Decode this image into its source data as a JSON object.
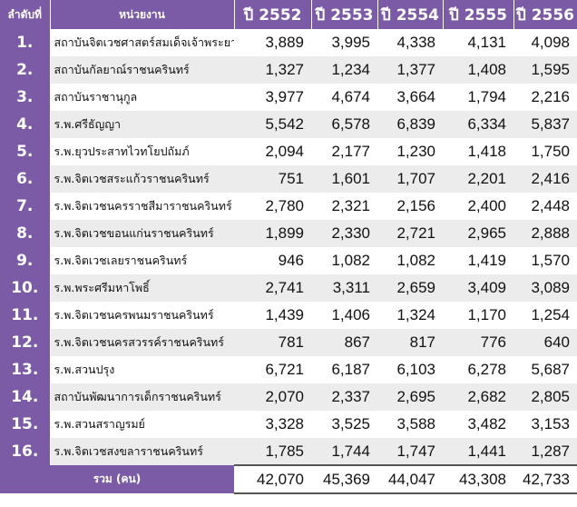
{
  "header": {
    "index_label": "ลำดับที่",
    "name_label": "หน่วยงาน",
    "years": [
      "ปี 2552",
      "ปี 2553",
      "ปี 2554",
      "ปี 2555",
      "ปี 2556"
    ]
  },
  "rows": [
    {
      "idx": "1.",
      "name": "สถาบันจิตเวชศาสตร์สมเด็จเจ้าพระยา",
      "values": [
        "3,889",
        "3,995",
        "4,338",
        "4,131",
        "4,098"
      ]
    },
    {
      "idx": "2.",
      "name": "สถาบันกัลยาณ์ราชนครินทร์",
      "values": [
        "1,327",
        "1,234",
        "1,377",
        "1,408",
        "1,595"
      ]
    },
    {
      "idx": "3.",
      "name": "สถาบันราชานุกูล",
      "values": [
        "3,977",
        "4,674",
        "3,664",
        "1,794",
        "2,216"
      ]
    },
    {
      "idx": "4.",
      "name": "ร.พ.ศรีธัญญา",
      "values": [
        "5,542",
        "6,578",
        "6,839",
        "6,334",
        "5,837"
      ]
    },
    {
      "idx": "5.",
      "name": "ร.พ.ยุวประสาทไวทโยปถัมภ์",
      "values": [
        "2,094",
        "2,177",
        "1,230",
        "1,418",
        "1,750"
      ]
    },
    {
      "idx": "6.",
      "name": "ร.พ.จิตเวชสระแก้วราชนครินทร์",
      "values": [
        "751",
        "1,601",
        "1,707",
        "2,201",
        "2,416"
      ]
    },
    {
      "idx": "7.",
      "name": "ร.พ.จิตเวชนครราชสีมาราชนครินทร์",
      "values": [
        "2,780",
        "2,321",
        "2,156",
        "2,400",
        "2,448"
      ]
    },
    {
      "idx": "8.",
      "name": "ร.พ.จิตเวชขอนแก่นราชนครินทร์",
      "values": [
        "1,899",
        "2,330",
        "2,721",
        "2,965",
        "2,888"
      ]
    },
    {
      "idx": "9.",
      "name": "ร.พ.จิตเวชเลยราชนครินทร์",
      "values": [
        "946",
        "1,082",
        "1,082",
        "1,419",
        "1,570"
      ]
    },
    {
      "idx": "10.",
      "name": "ร.พ.พระศรีมหาโพธิ์",
      "values": [
        "2,741",
        "3,311",
        "2,659",
        "3,409",
        "3,089"
      ]
    },
    {
      "idx": "11.",
      "name": "ร.พ.จิตเวชนครพนมราชนครินทร์",
      "values": [
        "1,439",
        "1,406",
        "1,324",
        "1,170",
        "1,254"
      ]
    },
    {
      "idx": "12.",
      "name": "ร.พ.จิตเวชนครสวรรค์ราชนครินทร์",
      "values": [
        "781",
        "867",
        "817",
        "776",
        "640"
      ]
    },
    {
      "idx": "13.",
      "name": "ร.พ.สวนปรุง",
      "values": [
        "6,721",
        "6,187",
        "6,103",
        "6,278",
        "5,687"
      ]
    },
    {
      "idx": "14.",
      "name": "สถาบันพัฒนาการเด็กราชนครินทร์",
      "values": [
        "2,070",
        "2,337",
        "2,695",
        "2,682",
        "2,805"
      ]
    },
    {
      "idx": "15.",
      "name": "ร.พ.สวนสราญรมย์",
      "values": [
        "3,328",
        "3,525",
        "3,588",
        "3,482",
        "3,153"
      ]
    },
    {
      "idx": "16.",
      "name": "ร.พ.จิตเวชสงขลาราชนครินทร์",
      "values": [
        "1,785",
        "1,744",
        "1,747",
        "1,441",
        "1,287"
      ]
    }
  ],
  "total": {
    "label": "รวม  (คน)",
    "values": [
      "42,070",
      "45,369",
      "44,047",
      "43,308",
      "42,733"
    ]
  },
  "colors": {
    "header_bg": "#7b5ba6",
    "row_alt_bg": "#ececec"
  }
}
